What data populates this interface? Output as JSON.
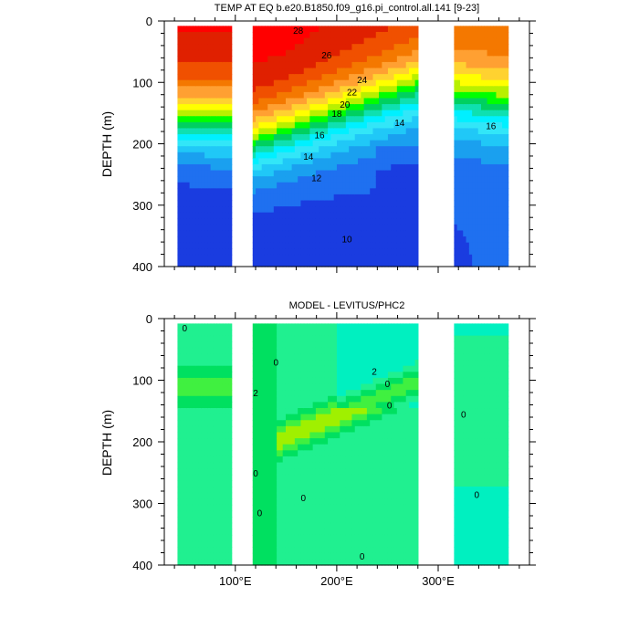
{
  "chart_data": [
    {
      "type": "heatmap",
      "title": "TEMP AT EQ b.e20.B1850.f09_g16.pi_control.all.141 [9-23]",
      "ylabel": "DEPTH (m)",
      "xlim": [
        30,
        390
      ],
      "ylim": [
        0,
        400
      ],
      "y_reversed": true,
      "x_ticks": [
        100,
        200,
        300
      ],
      "x_tick_labels": [
        "100°E",
        "200°E",
        "300°E"
      ],
      "y_ticks": [
        0,
        100,
        200,
        300,
        400
      ],
      "y_tick_labels": [
        "0",
        "100",
        "200",
        "300",
        "400"
      ],
      "land_gaps_lon": [
        [
          97,
          117
        ],
        [
          125,
          127
        ],
        [
          129,
          130
        ],
        [
          280,
          315
        ]
      ],
      "contour_labels": [
        {
          "text": "28",
          "lon": 162,
          "depth": 15
        },
        {
          "text": "26",
          "lon": 190,
          "depth": 55
        },
        {
          "text": "24",
          "lon": 225,
          "depth": 95
        },
        {
          "text": "22",
          "lon": 215,
          "depth": 115
        },
        {
          "text": "20",
          "lon": 208,
          "depth": 135
        },
        {
          "text": "18",
          "lon": 200,
          "depth": 150
        },
        {
          "text": "16",
          "lon": 183,
          "depth": 185
        },
        {
          "text": "14",
          "lon": 172,
          "depth": 220
        },
        {
          "text": "12",
          "lon": 180,
          "depth": 255
        },
        {
          "text": "10",
          "lon": 210,
          "depth": 355
        },
        {
          "text": "14",
          "lon": 262,
          "depth": 165
        },
        {
          "text": "16",
          "lon": 352,
          "depth": 170
        }
      ]
    },
    {
      "type": "heatmap",
      "title": "MODEL - LEVITUS/PHC2",
      "ylabel": "DEPTH (m)",
      "xlim": [
        30,
        390
      ],
      "ylim": [
        0,
        400
      ],
      "y_reversed": true,
      "x_ticks": [
        100,
        200,
        300
      ],
      "x_tick_labels": [
        "100°E",
        "200°E",
        "300°E"
      ],
      "y_ticks": [
        0,
        100,
        200,
        300,
        400
      ],
      "y_tick_labels": [
        "0",
        "100",
        "200",
        "300",
        "400"
      ],
      "land_gaps_lon": [
        [
          97,
          117
        ],
        [
          125,
          127
        ],
        [
          129,
          130
        ],
        [
          280,
          315
        ]
      ],
      "contour_labels": [
        {
          "text": "0",
          "lon": 50,
          "depth": 15
        },
        {
          "text": "0",
          "lon": 140,
          "depth": 70
        },
        {
          "text": "2",
          "lon": 120,
          "depth": 120
        },
        {
          "text": "2",
          "lon": 237,
          "depth": 85
        },
        {
          "text": "0",
          "lon": 250,
          "depth": 105
        },
        {
          "text": "0",
          "lon": 252,
          "depth": 140
        },
        {
          "text": "0",
          "lon": 120,
          "depth": 250
        },
        {
          "text": "0",
          "lon": 167,
          "depth": 290
        },
        {
          "text": "0",
          "lon": 124,
          "depth": 315
        },
        {
          "text": "0",
          "lon": 225,
          "depth": 385
        },
        {
          "text": "0",
          "lon": 338,
          "depth": 285
        },
        {
          "text": "0",
          "lon": 325,
          "depth": 155
        }
      ]
    }
  ],
  "palettes": {
    "temp": [
      "#1a3ce0",
      "#1f70f0",
      "#1aa0ef",
      "#20c8f7",
      "#32e6f8",
      "#00f0ff",
      "#0fe0b0",
      "#00d060",
      "#00ff00",
      "#b8f000",
      "#ffff00",
      "#ffd230",
      "#ffa032",
      "#f47800",
      "#f05000",
      "#e02000",
      "#ff0000"
    ],
    "diff": [
      "#00f0c0",
      "#20f090",
      "#00e060",
      "#40f040",
      "#a0f000",
      "#c8f040"
    ]
  }
}
